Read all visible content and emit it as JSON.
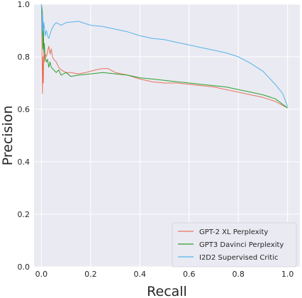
{
  "chart_data": {
    "type": "line",
    "xlabel": "Recall",
    "ylabel": "Precision",
    "xlim": [
      -0.03,
      1.05
    ],
    "ylim": [
      0.0,
      1.0
    ],
    "xticks": [
      0.0,
      0.2,
      0.4,
      0.6,
      0.8,
      1.0
    ],
    "yticks": [
      0.0,
      0.2,
      0.4,
      0.6,
      0.8,
      1.0
    ],
    "xtick_labels": [
      "0.0",
      "0.2",
      "0.4",
      "0.6",
      "0.8",
      "1.0"
    ],
    "ytick_labels": [
      "0.0",
      "0.2",
      "0.4",
      "0.6",
      "0.8",
      "1.0"
    ],
    "grid": true,
    "legend_position": "lower-right",
    "series": [
      {
        "name": "GPT-2 XL Perplexity",
        "color": "#e8735f",
        "x": [
          0.0,
          0.004,
          0.006,
          0.008,
          0.01,
          0.012,
          0.015,
          0.02,
          0.025,
          0.03,
          0.035,
          0.04,
          0.045,
          0.05,
          0.06,
          0.07,
          0.08,
          0.1,
          0.12,
          0.15,
          0.18,
          0.2,
          0.22,
          0.25,
          0.27,
          0.3,
          0.35,
          0.4,
          0.45,
          0.5,
          0.55,
          0.6,
          0.65,
          0.7,
          0.75,
          0.8,
          0.85,
          0.9,
          0.95,
          1.0
        ],
        "y": [
          1.0,
          0.66,
          0.8,
          0.7,
          0.83,
          0.78,
          0.81,
          0.8,
          0.82,
          0.84,
          0.81,
          0.83,
          0.8,
          0.79,
          0.78,
          0.76,
          0.75,
          0.74,
          0.74,
          0.735,
          0.74,
          0.745,
          0.75,
          0.755,
          0.755,
          0.74,
          0.73,
          0.715,
          0.705,
          0.7,
          0.7,
          0.695,
          0.69,
          0.685,
          0.675,
          0.665,
          0.655,
          0.645,
          0.63,
          0.605
        ]
      },
      {
        "name": "GPT3 Davinci Perplexity",
        "color": "#2ca02c",
        "x": [
          0.0,
          0.004,
          0.006,
          0.008,
          0.01,
          0.012,
          0.015,
          0.02,
          0.025,
          0.03,
          0.035,
          0.04,
          0.05,
          0.06,
          0.07,
          0.08,
          0.1,
          0.12,
          0.15,
          0.2,
          0.25,
          0.3,
          0.35,
          0.4,
          0.45,
          0.5,
          0.55,
          0.6,
          0.65,
          0.7,
          0.75,
          0.8,
          0.85,
          0.9,
          0.95,
          1.0
        ],
        "y": [
          1.0,
          0.97,
          0.83,
          0.9,
          0.82,
          0.85,
          0.8,
          0.78,
          0.79,
          0.76,
          0.78,
          0.76,
          0.75,
          0.74,
          0.75,
          0.73,
          0.74,
          0.725,
          0.73,
          0.735,
          0.74,
          0.735,
          0.73,
          0.72,
          0.715,
          0.71,
          0.705,
          0.7,
          0.695,
          0.69,
          0.685,
          0.675,
          0.665,
          0.655,
          0.64,
          0.605
        ]
      },
      {
        "name": "I2D2 Supervised Critic",
        "color": "#56b4e9",
        "x": [
          0.0,
          0.003,
          0.005,
          0.008,
          0.01,
          0.015,
          0.02,
          0.025,
          0.03,
          0.04,
          0.05,
          0.06,
          0.08,
          0.1,
          0.15,
          0.2,
          0.25,
          0.3,
          0.35,
          0.4,
          0.45,
          0.5,
          0.55,
          0.6,
          0.65,
          0.7,
          0.75,
          0.8,
          0.85,
          0.9,
          0.95,
          0.98,
          1.0
        ],
        "y": [
          1.0,
          0.88,
          0.96,
          0.9,
          0.93,
          0.88,
          0.9,
          0.88,
          0.87,
          0.9,
          0.92,
          0.93,
          0.92,
          0.93,
          0.935,
          0.92,
          0.915,
          0.905,
          0.895,
          0.88,
          0.87,
          0.865,
          0.855,
          0.845,
          0.835,
          0.825,
          0.815,
          0.8,
          0.775,
          0.745,
          0.695,
          0.66,
          0.61
        ]
      }
    ]
  }
}
